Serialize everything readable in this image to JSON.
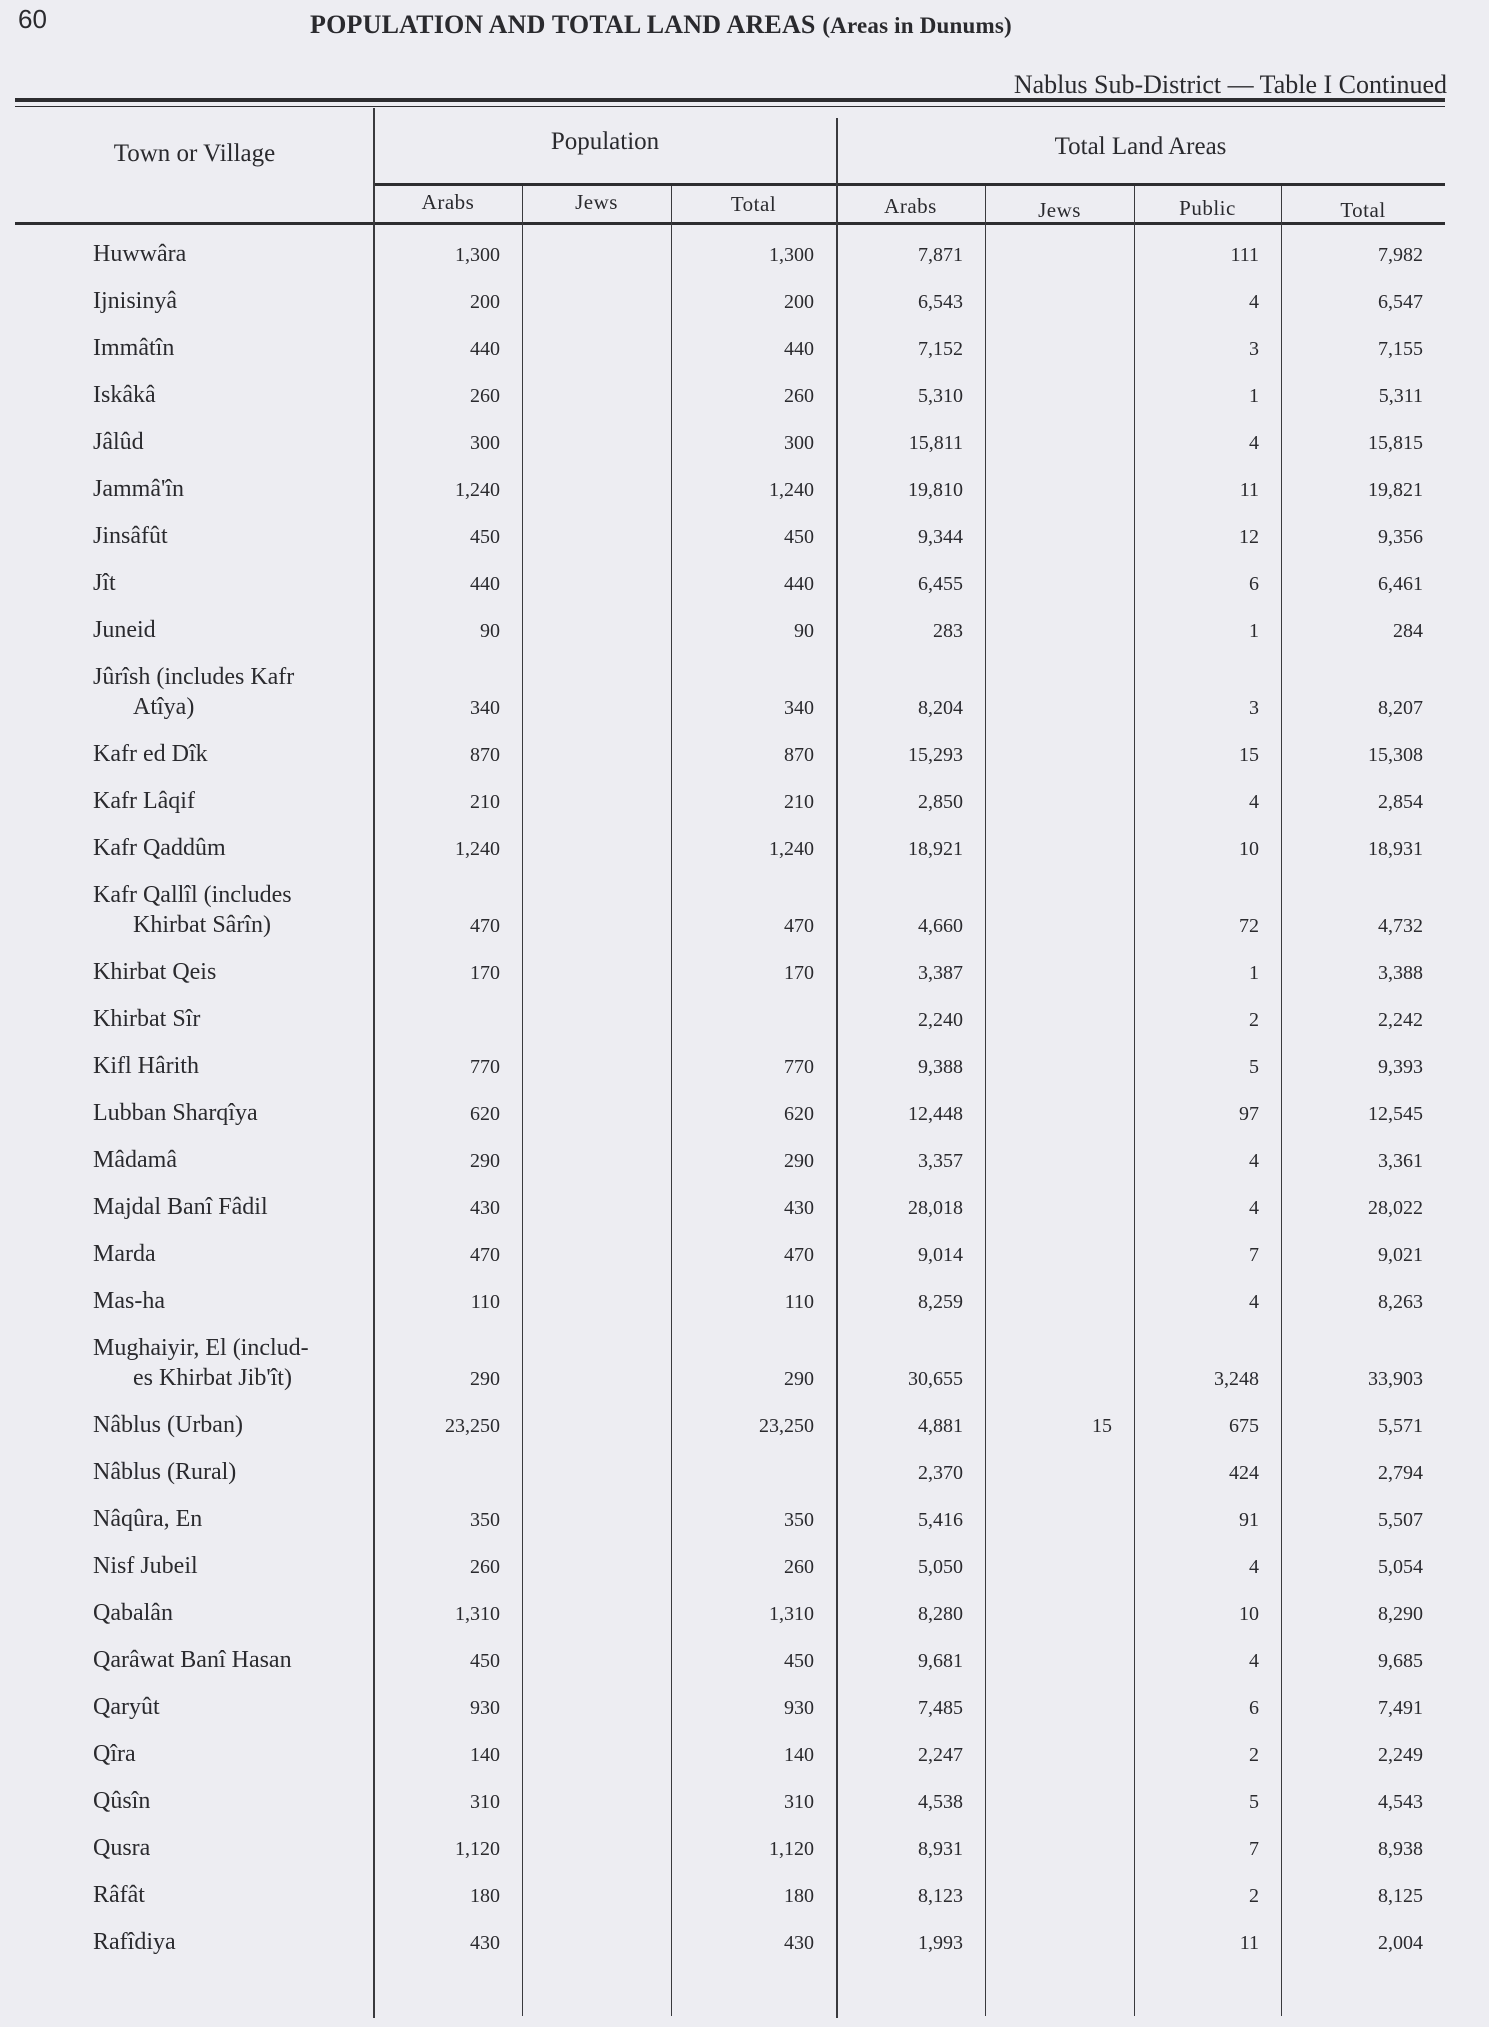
{
  "page_number": "60",
  "title": "POPULATION AND TOTAL LAND AREAS",
  "title_note": "(Areas in Dunums)",
  "subtitle": "Nablus Sub-District — Table I Continued",
  "headers": {
    "town": "Town or Village",
    "population": "Population",
    "land": "Total Land Areas",
    "columns": [
      "Arabs",
      "Jews",
      "Total",
      "Arabs",
      "Jews",
      "Public",
      "Total"
    ]
  },
  "rows": [
    [
      "Huwwâra",
      "",
      "1,300",
      "",
      "1,300",
      "7,871",
      "",
      "111",
      "7,982"
    ],
    [
      "Ijnisinyâ",
      "",
      "200",
      "",
      "200",
      "6,543",
      "",
      "4",
      "6,547"
    ],
    [
      "Immâtîn",
      "",
      "440",
      "",
      "440",
      "7,152",
      "",
      "3",
      "7,155"
    ],
    [
      "Iskâkâ",
      "",
      "260",
      "",
      "260",
      "5,310",
      "",
      "1",
      "5,311"
    ],
    [
      "Jâlûd",
      "",
      "300",
      "",
      "300",
      "15,811",
      "",
      "4",
      "15,815"
    ],
    [
      "Jammâ'în",
      "",
      "1,240",
      "",
      "1,240",
      "19,810",
      "",
      "11",
      "19,821"
    ],
    [
      "Jinsâfût",
      "",
      "450",
      "",
      "450",
      "9,344",
      "",
      "12",
      "9,356"
    ],
    [
      "Jît",
      "",
      "440",
      "",
      "440",
      "6,455",
      "",
      "6",
      "6,461"
    ],
    [
      "Juneid",
      "",
      "90",
      "",
      "90",
      "283",
      "",
      "1",
      "284"
    ],
    [
      "Jûrîsh (includes Kafr",
      "Atîya)",
      "340",
      "",
      "340",
      "8,204",
      "",
      "3",
      "8,207"
    ],
    [
      "Kafr ed Dîk",
      "",
      "870",
      "",
      "870",
      "15,293",
      "",
      "15",
      "15,308"
    ],
    [
      "Kafr Lâqif",
      "",
      "210",
      "",
      "210",
      "2,850",
      "",
      "4",
      "2,854"
    ],
    [
      "Kafr Qaddûm",
      "",
      "1,240",
      "",
      "1,240",
      "18,921",
      "",
      "10",
      "18,931"
    ],
    [
      "Kafr Qallîl (includes",
      "Khirbat Sârîn)",
      "470",
      "",
      "470",
      "4,660",
      "",
      "72",
      "4,732"
    ],
    [
      "Khirbat Qeis",
      "",
      "170",
      "",
      "170",
      "3,387",
      "",
      "1",
      "3,388"
    ],
    [
      "Khirbat Sîr",
      "",
      "",
      "",
      "",
      "2,240",
      "",
      "2",
      "2,242"
    ],
    [
      "Kifl Hârith",
      "",
      "770",
      "",
      "770",
      "9,388",
      "",
      "5",
      "9,393"
    ],
    [
      "Lubban Sharqîya",
      "",
      "620",
      "",
      "620",
      "12,448",
      "",
      "97",
      "12,545"
    ],
    [
      "Mâdamâ",
      "",
      "290",
      "",
      "290",
      "3,357",
      "",
      "4",
      "3,361"
    ],
    [
      "Majdal Banî Fâdil",
      "",
      "430",
      "",
      "430",
      "28,018",
      "",
      "4",
      "28,022"
    ],
    [
      "Marda",
      "",
      "470",
      "",
      "470",
      "9,014",
      "",
      "7",
      "9,021"
    ],
    [
      "Mas-ha",
      "",
      "110",
      "",
      "110",
      "8,259",
      "",
      "4",
      "8,263"
    ],
    [
      "Mughaiyir, El (includ-",
      "es Khirbat Jib'ît)",
      "290",
      "",
      "290",
      "30,655",
      "",
      "3,248",
      "33,903"
    ],
    [
      "Nâblus (Urban)",
      "",
      "23,250",
      "",
      "23,250",
      "4,881",
      "15",
      "675",
      "5,571"
    ],
    [
      "Nâblus (Rural)",
      "",
      "",
      "",
      "",
      "2,370",
      "",
      "424",
      "2,794"
    ],
    [
      "Nâqûra, En",
      "",
      "350",
      "",
      "350",
      "5,416",
      "",
      "91",
      "5,507"
    ],
    [
      "Nisf Jubeil",
      "",
      "260",
      "",
      "260",
      "5,050",
      "",
      "4",
      "5,054"
    ],
    [
      "Qabalân",
      "",
      "1,310",
      "",
      "1,310",
      "8,280",
      "",
      "10",
      "8,290"
    ],
    [
      "Qarâwat Banî Hasan",
      "",
      "450",
      "",
      "450",
      "9,681",
      "",
      "4",
      "9,685"
    ],
    [
      "Qaryût",
      "",
      "930",
      "",
      "930",
      "7,485",
      "",
      "6",
      "7,491"
    ],
    [
      "Qîra",
      "",
      "140",
      "",
      "140",
      "2,247",
      "",
      "2",
      "2,249"
    ],
    [
      "Qûsîn",
      "",
      "310",
      "",
      "310",
      "4,538",
      "",
      "5",
      "4,543"
    ],
    [
      "Qusra",
      "",
      "1,120",
      "",
      "1,120",
      "8,931",
      "",
      "7",
      "8,938"
    ],
    [
      "Râfât",
      "",
      "180",
      "",
      "180",
      "8,123",
      "",
      "2",
      "8,125"
    ],
    [
      "Rafîdiya",
      "",
      "430",
      "",
      "430",
      "1,993",
      "",
      "11",
      "2,004"
    ]
  ]
}
